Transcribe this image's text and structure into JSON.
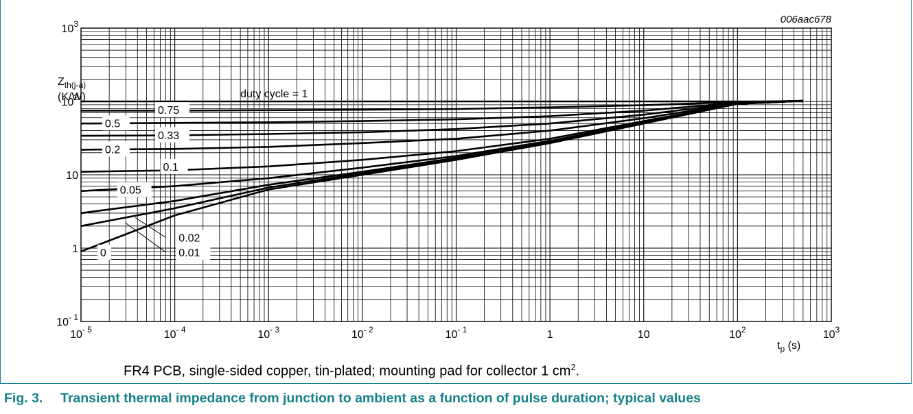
{
  "figure_id": "006aac678",
  "note": {
    "text": "FR4 PCB, single-sided copper, tin-plated; mounting pad for collector 1 cm",
    "superscript": "2",
    "end": "."
  },
  "caption": {
    "number": "Fig. 3.",
    "text": "Transient thermal impedance from junction to ambient as a function of pulse duration; typical values"
  },
  "colors": {
    "accent": "#17818b",
    "grid": "#000000",
    "curve": "#000000"
  },
  "chart_data": {
    "type": "line",
    "x_scale": "log",
    "y_scale": "log",
    "xlim": [
      1e-05,
      1000
    ],
    "ylim": [
      0.1,
      1000
    ],
    "grid": true,
    "x_tick_labels": [
      {
        "value": 1e-05,
        "base": "10",
        "exp": "- 5"
      },
      {
        "value": 0.0001,
        "base": "10",
        "exp": "- 4"
      },
      {
        "value": 0.001,
        "base": "10",
        "exp": "- 3"
      },
      {
        "value": 0.01,
        "base": "10",
        "exp": "- 2"
      },
      {
        "value": 0.1,
        "base": "10",
        "exp": "- 1"
      },
      {
        "value": 1,
        "base": "1",
        "exp": ""
      },
      {
        "value": 10,
        "base": "10",
        "exp": ""
      },
      {
        "value": 100,
        "base": "10",
        "exp": "2"
      },
      {
        "value": 1000,
        "base": "10",
        "exp": "3"
      }
    ],
    "y_tick_labels": [
      {
        "value": 0.1,
        "base": "10",
        "exp": "- 1"
      },
      {
        "value": 1,
        "base": "1",
        "exp": ""
      },
      {
        "value": 10,
        "base": "10",
        "exp": ""
      },
      {
        "value": 100,
        "base": "10",
        "exp": "2"
      },
      {
        "value": 1000,
        "base": "10",
        "exp": "3"
      }
    ],
    "ylabel": {
      "main": "Z",
      "sub": "th(j-a)",
      "unit": "(K/W)"
    },
    "xlabel": {
      "main": "t",
      "sub": "p",
      "unit": " (s)"
    },
    "series": [
      {
        "name": "duty cycle = 1",
        "x": [
          1e-05,
          500
        ],
        "y": [
          100,
          100
        ]
      },
      {
        "name": "0.75",
        "x": [
          1e-05,
          0.0001,
          0.001,
          0.01,
          0.1,
          1,
          10,
          100,
          500
        ],
        "y": [
          75,
          75,
          76,
          77,
          79,
          83,
          89,
          98,
          102
        ]
      },
      {
        "name": "0.5",
        "x": [
          1e-05,
          0.0001,
          0.001,
          0.01,
          0.1,
          1,
          10,
          100,
          500
        ],
        "y": [
          50,
          51,
          52,
          54,
          57,
          63,
          75,
          96,
          102
        ]
      },
      {
        "name": "0.33",
        "x": [
          1e-05,
          0.0001,
          0.001,
          0.01,
          0.1,
          1,
          10,
          100,
          500
        ],
        "y": [
          34,
          34.5,
          36,
          38,
          42,
          50,
          66,
          95,
          102
        ]
      },
      {
        "name": "0.2",
        "x": [
          1e-05,
          0.0001,
          0.001,
          0.01,
          0.1,
          1,
          10,
          100,
          500
        ],
        "y": [
          22,
          22.5,
          24,
          27,
          31,
          40,
          59,
          94,
          102
        ]
      },
      {
        "name": "0.1",
        "x": [
          1e-05,
          0.0001,
          0.001,
          0.01,
          0.1,
          1,
          10,
          100,
          500
        ],
        "y": [
          11,
          11.5,
          13,
          16,
          21,
          31,
          54,
          93,
          102
        ]
      },
      {
        "name": "0.05",
        "x": [
          1e-05,
          0.0001,
          0.001,
          0.01,
          0.1,
          1,
          10,
          100,
          500
        ],
        "y": [
          6,
          7,
          9,
          12.5,
          18,
          29,
          52,
          93,
          102
        ]
      },
      {
        "name": "0.02",
        "x": [
          1e-05,
          0.0001,
          0.001,
          0.01,
          0.1,
          1,
          10,
          100,
          500
        ],
        "y": [
          3,
          4.4,
          7.3,
          11,
          17,
          28,
          51,
          93,
          102
        ]
      },
      {
        "name": "0.01",
        "x": [
          1e-05,
          0.0001,
          0.001,
          0.01,
          0.1,
          1,
          10,
          100,
          500
        ],
        "y": [
          2,
          3.5,
          6.7,
          10.5,
          16.5,
          27.5,
          50.5,
          93,
          102
        ]
      },
      {
        "name": "0",
        "x": [
          1e-05,
          0.0001,
          0.001,
          0.01,
          0.1,
          1,
          10,
          100,
          500
        ],
        "y": [
          0.9,
          2.8,
          6.3,
          10,
          16,
          27,
          50,
          93,
          102
        ]
      }
    ],
    "curve_labels": [
      {
        "text": "duty cycle = 1",
        "x": 0.0005,
        "y": 130,
        "box": false
      },
      {
        "text": "0.75",
        "x": 6.6e-05,
        "y": 77,
        "box": true
      },
      {
        "text": "0.5",
        "x": 1.8e-05,
        "y": 51,
        "box": true
      },
      {
        "text": "0.33",
        "x": 6.6e-05,
        "y": 35,
        "box": true
      },
      {
        "text": "0.2",
        "x": 1.8e-05,
        "y": 22.5,
        "box": true
      },
      {
        "text": "0.1",
        "x": 7.5e-05,
        "y": 13,
        "box": true
      },
      {
        "text": "0.05",
        "x": 2.6e-05,
        "y": 6.3,
        "box": true
      },
      {
        "text": "0.02",
        "x": 0.00011,
        "y": 1.4,
        "box": true
      },
      {
        "text": "0.01",
        "x": 0.00011,
        "y": 0.88,
        "box": true
      },
      {
        "text": "0",
        "x": 1.6e-05,
        "y": 0.88,
        "box": true
      }
    ],
    "leaders": [
      {
        "from": [
          3.8e-05,
          2.6
        ],
        "to": [
          8e-05,
          1.4
        ]
      },
      {
        "from": [
          3e-05,
          2.2
        ],
        "to": [
          8e-05,
          0.88
        ]
      }
    ]
  }
}
